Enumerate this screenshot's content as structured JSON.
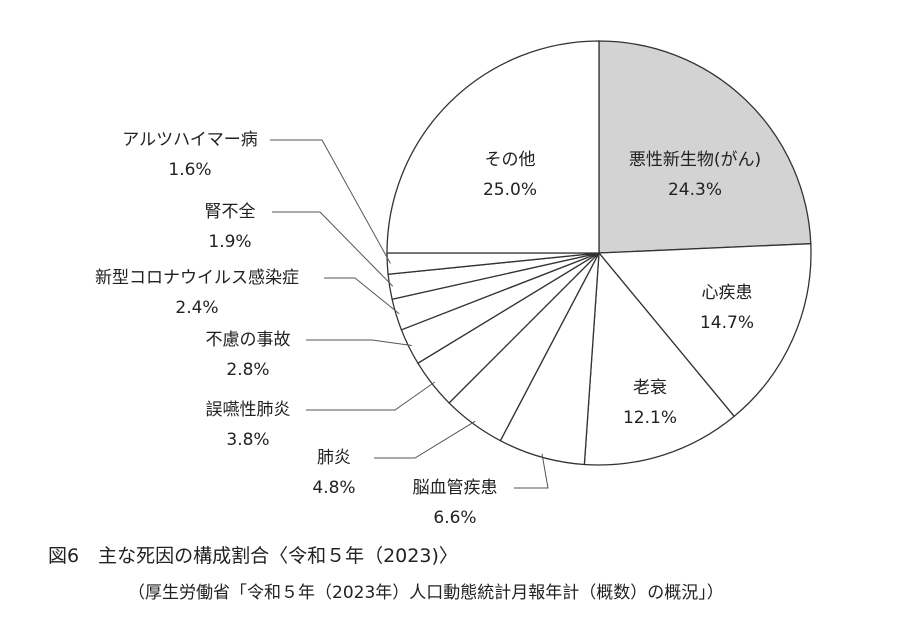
{
  "chart_data": {
    "type": "pie",
    "title": "図6　主な死因の構成割合〈令和５年（2023)〉",
    "source": "（厚生労働省「令和５年（2023年）人口動態統計月報年計（概数）の概況」）",
    "start": "top",
    "direction": "clockwise",
    "slices": [
      {
        "label": "悪性新生物(がん)",
        "value": 24.3,
        "value_label": "24.3%",
        "color": "#d3d3d3"
      },
      {
        "label": "心疾患",
        "value": 14.7,
        "value_label": "14.7%",
        "color": "#ffffff"
      },
      {
        "label": "老衰",
        "value": 12.1,
        "value_label": "12.1%",
        "color": "#ffffff"
      },
      {
        "label": "脳血管疾患",
        "value": 6.6,
        "value_label": "6.6%",
        "color": "#ffffff"
      },
      {
        "label": "肺炎",
        "value": 4.8,
        "value_label": "4.8%",
        "color": "#ffffff"
      },
      {
        "label": "誤嚥性肺炎",
        "value": 3.8,
        "value_label": "3.8%",
        "color": "#ffffff"
      },
      {
        "label": "不慮の事故",
        "value": 2.8,
        "value_label": "2.8%",
        "color": "#ffffff"
      },
      {
        "label": "新型コロナウイルス感染症",
        "value": 2.4,
        "value_label": "2.4%",
        "color": "#ffffff"
      },
      {
        "label": "腎不全",
        "value": 1.9,
        "value_label": "1.9%",
        "color": "#ffffff"
      },
      {
        "label": "アルツハイマー病",
        "value": 1.6,
        "value_label": "1.6%",
        "color": "#ffffff"
      },
      {
        "label": "その他",
        "value": 25.0,
        "value_label": "25.0%",
        "color": "#ffffff"
      }
    ]
  }
}
